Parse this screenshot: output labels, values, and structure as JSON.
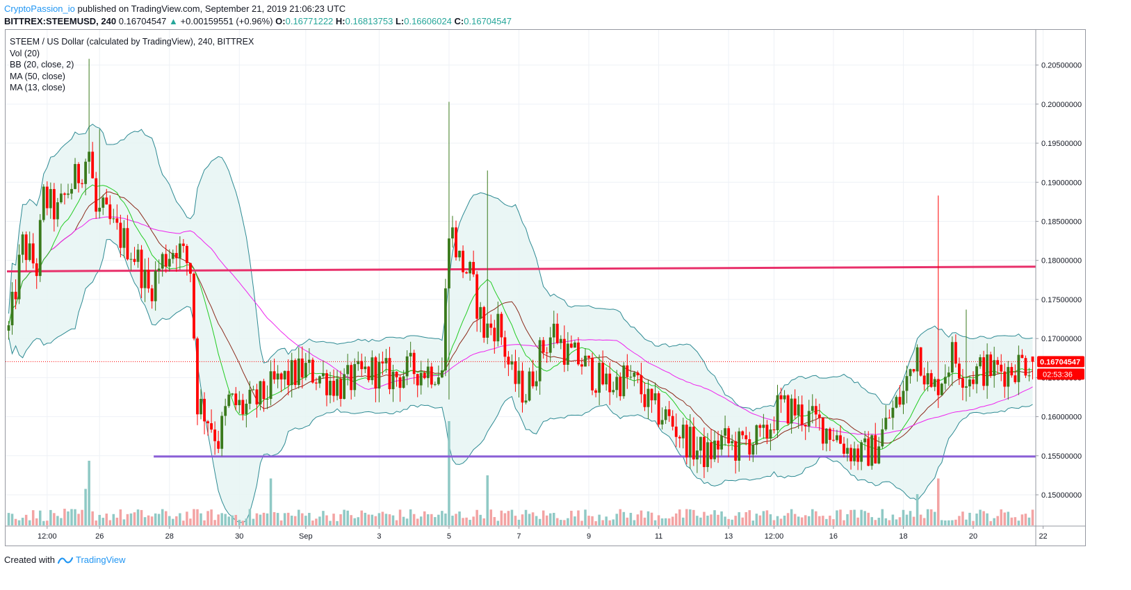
{
  "header": {
    "author": "CryptoPassion_io",
    "published_text": "published on TradingView.com, September 21, 2019 21:06:23 UTC"
  },
  "ohlc_line": {
    "symbol": "BITTREX:STEEMUSD, 240",
    "last": "0.16704547",
    "arrow": "▲",
    "change": "+0.00159551 (+0.96%)",
    "o_label": "O:",
    "o": "0.16771222",
    "h_label": "H:",
    "h": "0.16813753",
    "l_label": "L:",
    "l": "0.16606024",
    "c_label": "C:",
    "c": "0.16704547"
  },
  "legend": {
    "title": "STEEM / US Dollar (calculated by TradingView), 240, BITTREX",
    "vol": "Vol (20)",
    "bb": "BB (20, close, 2)",
    "ma50": "MA (50, close)",
    "ma13": "MA (13, close)"
  },
  "price_tag": {
    "value": "0.16704547",
    "countdown": "02:53:36"
  },
  "footer": {
    "created_with": "Created with",
    "brand": "TradingView"
  },
  "colors": {
    "up": "#3a7a1c",
    "down": "#ff0000",
    "vol_up": "#8fc9c5",
    "vol_down": "#f3a3a3",
    "bb": "#2d8a93",
    "bb_fill": "#e6f4f3",
    "ma50": "#ee22ee",
    "ma13": "#22cc22",
    "ma20_mid": "#8b2a1a",
    "resistance": "#e8306a",
    "support": "#8a5ed6",
    "last_price": "#ff0000"
  },
  "chart_data": {
    "type": "candlestick",
    "title": "STEEM / US Dollar (calculated by TradingView), 240, BITTREX",
    "y_ticks": [
      "0.20500000",
      "0.20000000",
      "0.19500000",
      "0.19000000",
      "0.18500000",
      "0.18000000",
      "0.17500000",
      "0.17000000",
      "0.16500000",
      "0.16000000",
      "0.15500000",
      "0.15000000"
    ],
    "ylim": [
      0.146,
      0.2095
    ],
    "x_ticks": [
      "12:00",
      "26",
      "28",
      "30",
      "Sep",
      "3",
      "5",
      "7",
      "9",
      "11",
      "13",
      "12:00",
      "16",
      "18",
      "20",
      "22"
    ],
    "x_tick_index": [
      11,
      26,
      46,
      66,
      85,
      106,
      126,
      146,
      166,
      186,
      206,
      219,
      236,
      256,
      276,
      296
    ],
    "horizontal_lines": [
      {
        "name": "resistance",
        "y0": 0.1786,
        "y1": 0.1792,
        "from_index": 0,
        "to_index": 296
      },
      {
        "name": "support",
        "y0": 0.1549,
        "y1": 0.1549,
        "from_index": 42,
        "to_index": 296
      }
    ],
    "last_price": 0.16704547,
    "keypoints": [
      [
        0,
        0.171
      ],
      [
        4,
        0.182
      ],
      [
        8,
        0.179
      ],
      [
        10,
        0.188
      ],
      [
        14,
        0.186
      ],
      [
        17,
        0.189
      ],
      [
        20,
        0.191
      ],
      [
        23,
        0.194
      ],
      [
        25,
        0.186
      ],
      [
        27,
        0.186
      ],
      [
        30,
        0.184
      ],
      [
        34,
        0.182
      ],
      [
        37,
        0.18
      ],
      [
        40,
        0.176
      ],
      [
        44,
        0.18
      ],
      [
        48,
        0.182
      ],
      [
        52,
        0.179
      ],
      [
        54,
        0.162
      ],
      [
        57,
        0.16
      ],
      [
        60,
        0.157
      ],
      [
        63,
        0.162
      ],
      [
        67,
        0.161
      ],
      [
        71,
        0.162
      ],
      [
        76,
        0.164
      ],
      [
        80,
        0.165
      ],
      [
        85,
        0.166
      ],
      [
        90,
        0.165
      ],
      [
        95,
        0.164
      ],
      [
        100,
        0.165
      ],
      [
        104,
        0.166
      ],
      [
        110,
        0.165
      ],
      [
        115,
        0.166
      ],
      [
        120,
        0.166
      ],
      [
        124,
        0.166
      ],
      [
        126,
        0.185
      ],
      [
        129,
        0.18
      ],
      [
        132,
        0.178
      ],
      [
        136,
        0.171
      ],
      [
        140,
        0.172
      ],
      [
        144,
        0.165
      ],
      [
        148,
        0.163
      ],
      [
        152,
        0.168
      ],
      [
        156,
        0.171
      ],
      [
        160,
        0.168
      ],
      [
        164,
        0.167
      ],
      [
        168,
        0.165
      ],
      [
        172,
        0.164
      ],
      [
        176,
        0.165
      ],
      [
        180,
        0.164
      ],
      [
        184,
        0.161
      ],
      [
        188,
        0.16
      ],
      [
        192,
        0.158
      ],
      [
        196,
        0.156
      ],
      [
        200,
        0.155
      ],
      [
        204,
        0.157
      ],
      [
        208,
        0.156
      ],
      [
        212,
        0.157
      ],
      [
        216,
        0.157
      ],
      [
        220,
        0.161
      ],
      [
        224,
        0.161
      ],
      [
        228,
        0.16
      ],
      [
        232,
        0.159
      ],
      [
        236,
        0.158
      ],
      [
        240,
        0.156
      ],
      [
        244,
        0.155
      ],
      [
        248,
        0.156
      ],
      [
        252,
        0.16
      ],
      [
        256,
        0.163
      ],
      [
        260,
        0.169
      ],
      [
        264,
        0.163
      ],
      [
        268,
        0.166
      ],
      [
        270,
        0.168
      ],
      [
        274,
        0.165
      ],
      [
        278,
        0.166
      ],
      [
        282,
        0.166
      ],
      [
        286,
        0.166
      ],
      [
        290,
        0.167
      ],
      [
        293,
        0.167
      ]
    ],
    "spikes": [
      {
        "index": 23,
        "high": 0.2058
      },
      {
        "index": 26,
        "high": 0.1968
      },
      {
        "index": 126,
        "high": 0.2003,
        "low": 0.1622
      },
      {
        "index": 137,
        "high": 0.1915
      },
      {
        "index": 266,
        "high": 0.1883
      },
      {
        "index": 274,
        "high": 0.1737
      }
    ],
    "volume_spikes": [
      {
        "index": 23,
        "v": 0.62,
        "up": true
      },
      {
        "index": 75,
        "v": 0.45,
        "up": true
      },
      {
        "index": 126,
        "v": 1.0,
        "up": true
      },
      {
        "index": 137,
        "v": 0.48,
        "up": false
      },
      {
        "index": 22,
        "v": 0.35,
        "up": false
      },
      {
        "index": 266,
        "v": 0.45,
        "up": false
      },
      {
        "index": 260,
        "v": 0.3,
        "up": true
      }
    ],
    "candle_count": 294
  }
}
